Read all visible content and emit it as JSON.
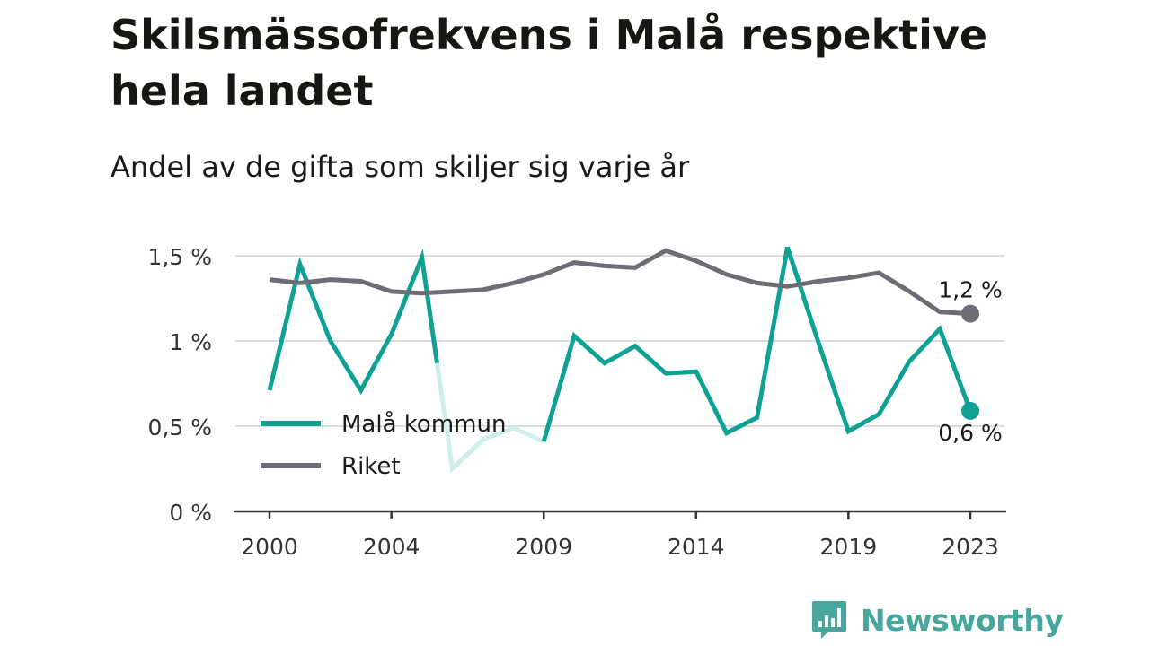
{
  "title": "Skilsmässofrekvens i Malå respektive hela landet",
  "subtitle": "Andel av de gifta som skiljer sig varje år",
  "brand": "Newsworthy",
  "chart_data": {
    "type": "line",
    "x": [
      2000,
      2001,
      2002,
      2003,
      2004,
      2005,
      2006,
      2007,
      2008,
      2009,
      2010,
      2011,
      2012,
      2013,
      2014,
      2015,
      2016,
      2017,
      2018,
      2019,
      2020,
      2021,
      2022,
      2023
    ],
    "xticks": [
      2000,
      2004,
      2009,
      2014,
      2019,
      2023
    ],
    "yticks": [
      {
        "value": 0,
        "label": "0 %"
      },
      {
        "value": 0.5,
        "label": "0,5 %"
      },
      {
        "value": 1,
        "label": "1 %"
      },
      {
        "value": 1.5,
        "label": "1,5 %"
      }
    ],
    "ylim": [
      0,
      1.5
    ],
    "grid": true,
    "legend_position": "inside-bottom-left",
    "series": [
      {
        "name": "Malå kommun",
        "color": "#0fa294",
        "faded_color": "#cdeeea",
        "values": [
          0.71,
          1.45,
          1.0,
          0.71,
          1.04,
          1.49,
          0.25,
          0.42,
          0.49,
          0.41,
          1.03,
          0.87,
          0.97,
          0.81,
          0.82,
          0.46,
          0.55,
          1.55,
          1.0,
          0.47,
          0.57,
          0.88,
          1.07,
          0.59
        ],
        "faded_range": [
          2005.5,
          2009
        ],
        "end_label": "0,6 %"
      },
      {
        "name": "Riket",
        "color": "#6d6d75",
        "values": [
          1.36,
          1.34,
          1.36,
          1.35,
          1.29,
          1.28,
          1.29,
          1.3,
          1.34,
          1.39,
          1.46,
          1.44,
          1.43,
          1.53,
          1.47,
          1.39,
          1.34,
          1.32,
          1.35,
          1.37,
          1.4,
          1.29,
          1.17,
          1.16
        ],
        "end_label": "1,2 %"
      }
    ]
  }
}
